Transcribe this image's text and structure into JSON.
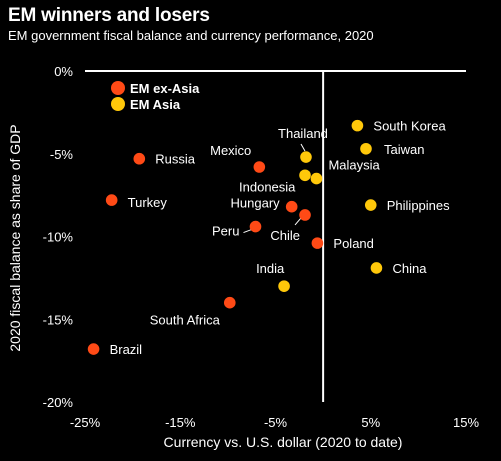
{
  "header": {
    "title": "EM winners and losers",
    "subtitle": "EM government fiscal balance and currency performance, 2020"
  },
  "chart_data": {
    "type": "scatter",
    "xlabel": "Currency vs. U.S. dollar (2020 to date)",
    "ylabel": "2020 fiscal balance as share of GDP",
    "xlim": [
      -25,
      15
    ],
    "ylim": [
      -20,
      0
    ],
    "x_ticks": [
      "-25%",
      "-15%",
      "-5%",
      "5%",
      "15%"
    ],
    "y_ticks": [
      "0%",
      "-5%",
      "-10%",
      "-15%",
      "-20%"
    ],
    "colors": {
      "em_ex_asia": "#ff4a16",
      "em_asia": "#ffc80a",
      "axis": "#ffffff",
      "background": "#000000"
    },
    "legend": {
      "placement": "top-left"
    },
    "series": [
      {
        "name": "EM ex-Asia",
        "color": "#ff4a16",
        "points": [
          {
            "label": "Russia",
            "x": -19.3,
            "y": -5.3
          },
          {
            "label": "Mexico",
            "x": -6.7,
            "y": -5.8
          },
          {
            "label": "Turkey",
            "x": -22.2,
            "y": -7.8
          },
          {
            "label": "Hungary",
            "x": -3.3,
            "y": -8.2
          },
          {
            "label": "Chile",
            "x": -1.9,
            "y": -8.7
          },
          {
            "label": "Peru",
            "x": -7.1,
            "y": -9.4
          },
          {
            "label": "Poland",
            "x": -0.6,
            "y": -10.4
          },
          {
            "label": "South Africa",
            "x": -9.8,
            "y": -14.0
          },
          {
            "label": "Brazil",
            "x": -24.1,
            "y": -16.8
          }
        ]
      },
      {
        "name": "EM Asia",
        "color": "#ffc80a",
        "points": [
          {
            "label": "South Korea",
            "x": 3.6,
            "y": -3.3
          },
          {
            "label": "Taiwan",
            "x": 4.5,
            "y": -4.7
          },
          {
            "label": "Thailand",
            "x": -1.8,
            "y": -5.2
          },
          {
            "label": "Malaysia",
            "x": -0.7,
            "y": -6.5
          },
          {
            "label": "Indonesia",
            "x": -1.9,
            "y": -6.3
          },
          {
            "label": "Philippines",
            "x": 5.0,
            "y": -8.1
          },
          {
            "label": "China",
            "x": 5.6,
            "y": -11.9
          },
          {
            "label": "India",
            "x": -4.1,
            "y": -13.0
          }
        ]
      }
    ]
  }
}
